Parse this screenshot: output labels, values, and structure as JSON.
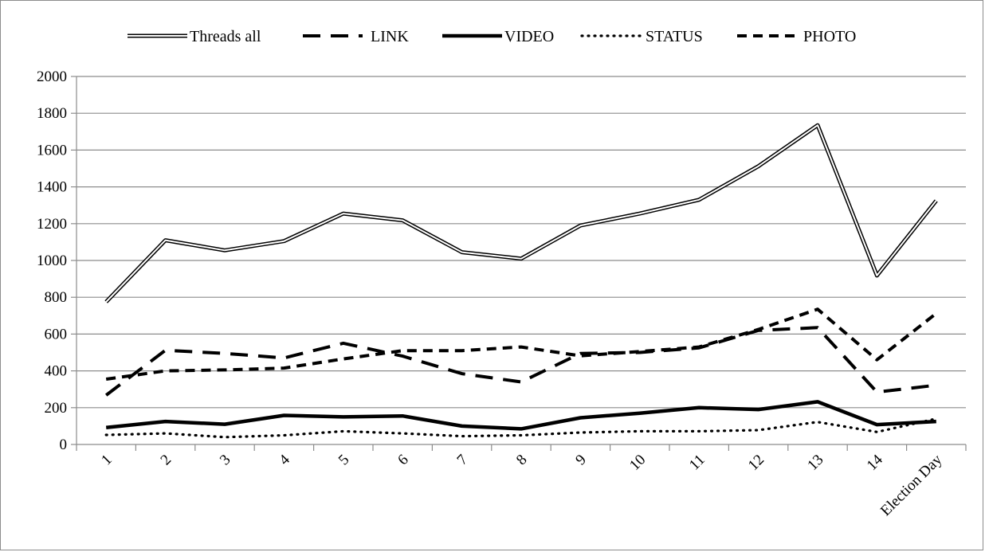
{
  "chart_data": {
    "type": "line",
    "categories": [
      "1",
      "2",
      "3",
      "4",
      "5",
      "6",
      "7",
      "8",
      "9",
      "10",
      "11",
      "12",
      "13",
      "14",
      "Election Day"
    ],
    "ylim": [
      0,
      2000
    ],
    "yticks": [
      0,
      200,
      400,
      600,
      800,
      1000,
      1200,
      1400,
      1600,
      1800,
      2000
    ],
    "grid": "horizontal",
    "legend_position": "top",
    "series": [
      {
        "name": "Threads all",
        "style": "double",
        "color": "#000000",
        "values": [
          775,
          1110,
          1055,
          1105,
          1255,
          1218,
          1045,
          1010,
          1190,
          1255,
          1330,
          1512,
          1735,
          918,
          1325
        ]
      },
      {
        "name": "LINK",
        "style": "long-dash",
        "color": "#000000",
        "values": [
          268,
          512,
          495,
          470,
          550,
          480,
          385,
          340,
          495,
          500,
          525,
          620,
          635,
          285,
          322
        ]
      },
      {
        "name": "VIDEO",
        "style": "solid",
        "color": "#000000",
        "values": [
          92,
          125,
          110,
          158,
          150,
          155,
          100,
          85,
          145,
          170,
          200,
          190,
          232,
          108,
          125
        ]
      },
      {
        "name": "STATUS",
        "style": "dotted",
        "color": "#000000",
        "values": [
          52,
          60,
          40,
          50,
          72,
          60,
          45,
          50,
          65,
          72,
          72,
          78,
          122,
          68,
          140
        ]
      },
      {
        "name": "PHOTO",
        "style": "short-dash",
        "color": "#000000",
        "values": [
          355,
          400,
          405,
          415,
          465,
          510,
          510,
          530,
          482,
          505,
          530,
          625,
          735,
          460,
          712
        ]
      }
    ]
  }
}
